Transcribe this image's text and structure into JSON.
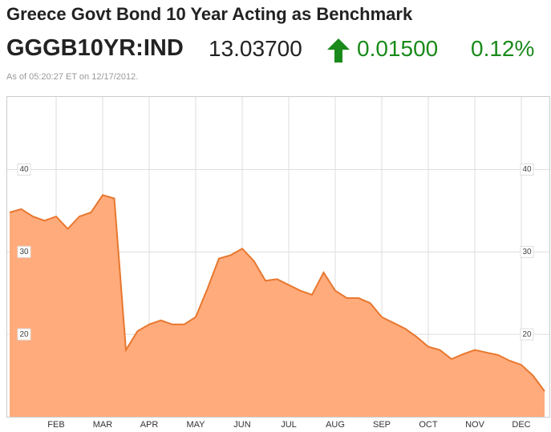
{
  "header": {
    "title": "Greece Govt Bond 10 Year Acting as Benchmark",
    "symbol": "GGGB10YR:IND",
    "price": "13.03700",
    "change": "0.01500",
    "change_pct": "0.12%",
    "timestamp": "As of 05:20:27 ET on 12/17/2012."
  },
  "chart_data": {
    "type": "area",
    "categories": [
      null,
      null,
      null,
      null,
      "FEB",
      null,
      null,
      null,
      "MAR",
      null,
      null,
      null,
      "APR",
      null,
      null,
      null,
      "MAY",
      null,
      null,
      null,
      "JUN",
      null,
      null,
      null,
      "JUL",
      null,
      null,
      null,
      "AUG",
      null,
      null,
      null,
      "SEP",
      null,
      null,
      null,
      "OCT",
      null,
      null,
      null,
      "NOV",
      null,
      null,
      null,
      "DEC",
      null,
      null
    ],
    "values": [
      34.8,
      35.2,
      34.3,
      33.8,
      34.3,
      32.8,
      34.3,
      34.8,
      36.9,
      36.5,
      18.1,
      20.4,
      21.2,
      21.7,
      21.2,
      21.2,
      22.1,
      25.5,
      29.2,
      29.6,
      30.4,
      28.9,
      26.5,
      26.7,
      26.0,
      25.3,
      24.8,
      27.5,
      25.3,
      24.4,
      24.4,
      23.8,
      22.1,
      21.4,
      20.7,
      19.7,
      18.5,
      18.1,
      17.0,
      17.6,
      18.1,
      17.8,
      17.5,
      16.8,
      16.3,
      15.0,
      13.1
    ],
    "color": "#ffab7c",
    "line_color": "#e8772e",
    "ylim": [
      10,
      48.8
    ],
    "yticks": [
      20,
      30,
      40
    ],
    "grid": true
  }
}
